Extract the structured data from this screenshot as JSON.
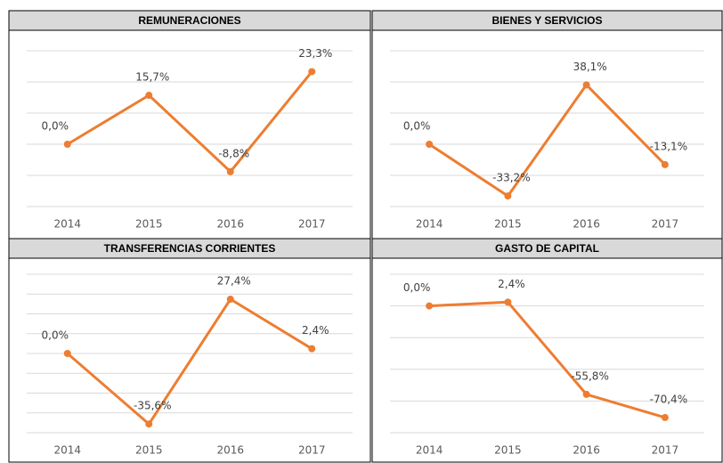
{
  "chart_data": [
    {
      "type": "line",
      "title": "REMUNERACIONES",
      "categories": [
        "2014",
        "2015",
        "2016",
        "2017"
      ],
      "values": [
        0.0,
        15.7,
        -8.8,
        23.3
      ],
      "value_labels": [
        "0,0%",
        "15,7%",
        "-8,8%",
        "23,3%"
      ],
      "color": "#ed7d31",
      "ylim": [
        -20,
        30
      ],
      "yticks": [
        -20,
        -10,
        0,
        10,
        20,
        30
      ],
      "grid": true
    },
    {
      "type": "line",
      "title": "BIENES Y SERVICIOS",
      "categories": [
        "2014",
        "2015",
        "2016",
        "2017"
      ],
      "values": [
        0.0,
        -33.2,
        38.1,
        -13.1
      ],
      "value_labels": [
        "0,0%",
        "-33,2%",
        "38,1%",
        "-13,1%"
      ],
      "color": "#ed7d31",
      "ylim": [
        -40,
        60
      ],
      "yticks": [
        -40,
        -20,
        0,
        20,
        40,
        60
      ],
      "grid": true
    },
    {
      "type": "line",
      "title": "TRANSFERENCIAS CORRIENTES",
      "categories": [
        "2014",
        "2015",
        "2016",
        "2017"
      ],
      "values": [
        0.0,
        -35.6,
        27.4,
        2.4
      ],
      "value_labels": [
        "0,0%",
        "-35,6%",
        "27,4%",
        "2,4%"
      ],
      "color": "#ed7d31",
      "ylim": [
        -40,
        40
      ],
      "yticks": [
        -40,
        -30,
        -20,
        -10,
        0,
        10,
        20,
        30,
        40
      ],
      "grid": true
    },
    {
      "type": "line",
      "title": "GASTO DE CAPITAL",
      "categories": [
        "2014",
        "2015",
        "2016",
        "2017"
      ],
      "values": [
        0.0,
        2.4,
        -55.8,
        -70.4
      ],
      "value_labels": [
        "0,0%",
        "2,4%",
        "-55,8%",
        "-70,4%"
      ],
      "color": "#ed7d31",
      "ylim": [
        -80,
        20
      ],
      "yticks": [
        -80,
        -60,
        -40,
        -20,
        0,
        20
      ],
      "grid": true
    }
  ]
}
